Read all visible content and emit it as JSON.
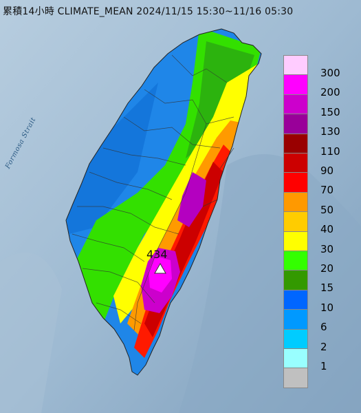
{
  "title": "累積14小時 CLIMATE_MEAN 2024/11/15 15:30~11/16 05:30",
  "strait_label": "Formosa Strait",
  "max_value": "434",
  "legend": [
    {
      "label": "300",
      "color": "#ffccff"
    },
    {
      "label": "200",
      "color": "#ff00ff"
    },
    {
      "label": "150",
      "color": "#cc00cc"
    },
    {
      "label": "130",
      "color": "#990099"
    },
    {
      "label": "110",
      "color": "#990000"
    },
    {
      "label": "90",
      "color": "#cc0000"
    },
    {
      "label": "70",
      "color": "#ff0000"
    },
    {
      "label": "50",
      "color": "#ff9900"
    },
    {
      "label": "40",
      "color": "#ffcc00"
    },
    {
      "label": "30",
      "color": "#ffff00"
    },
    {
      "label": "20",
      "color": "#33ff00"
    },
    {
      "label": "15",
      "color": "#339900"
    },
    {
      "label": "10",
      "color": "#0066ff"
    },
    {
      "label": "6",
      "color": "#0099ff"
    },
    {
      "label": "2",
      "color": "#00ccff"
    },
    {
      "label": "1",
      "color": "#99ffff"
    },
    {
      "label": "",
      "color": "#c0c0c0"
    }
  ]
}
